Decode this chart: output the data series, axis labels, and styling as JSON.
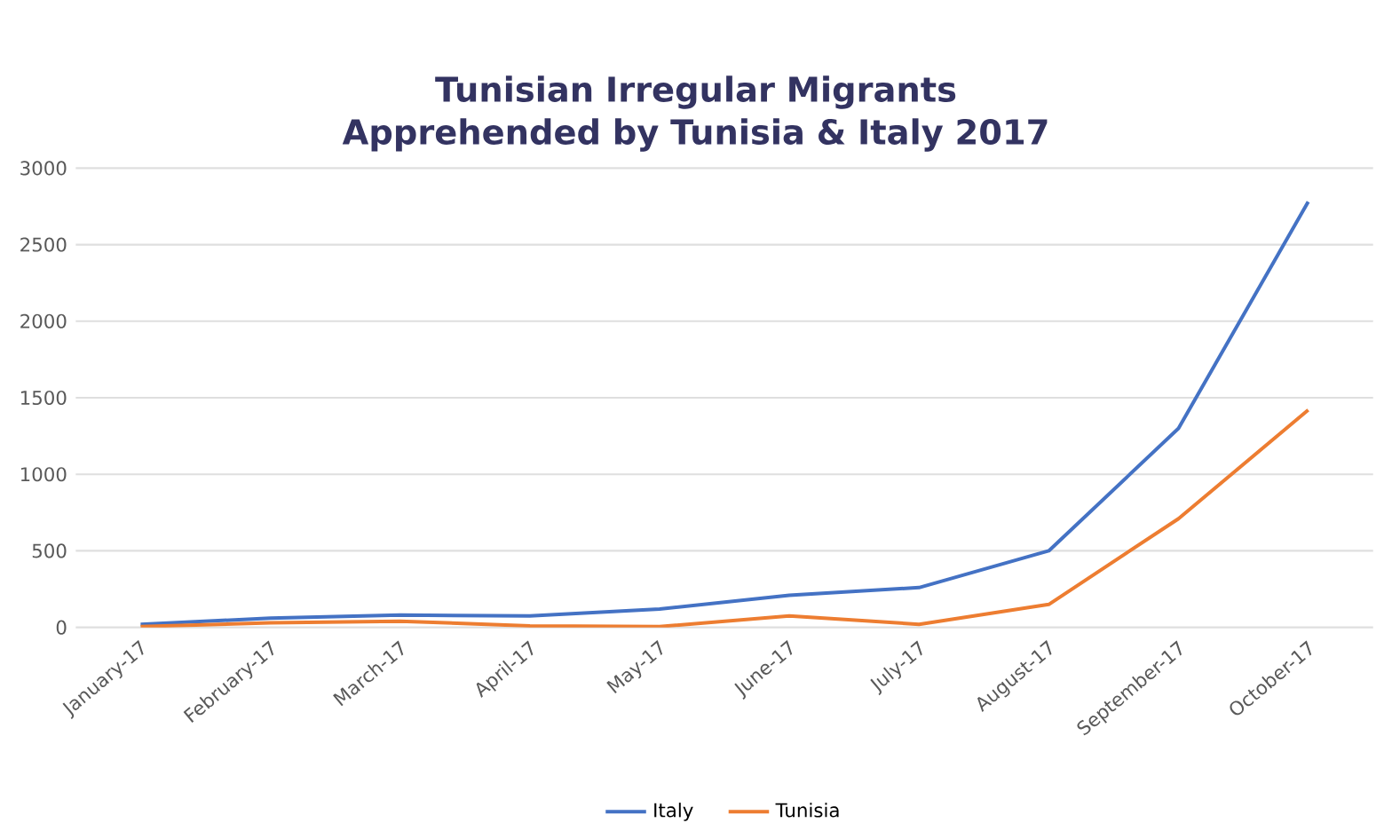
{
  "chart_data": {
    "type": "line",
    "title": "Tunisian Irregular Migrants Apprehended by Tunisia & Italy 2017",
    "categories": [
      "January-17",
      "February-17",
      "March-17",
      "April-17",
      "May-17",
      "June-17",
      "July-17",
      "August-17",
      "September-17",
      "October-17"
    ],
    "series": [
      {
        "name": "Italy",
        "color": "#4472c4",
        "values": [
          20,
          60,
          80,
          75,
          120,
          210,
          260,
          500,
          1300,
          2780
        ]
      },
      {
        "name": "Tunisia",
        "color": "#ed7d31",
        "values": [
          5,
          30,
          40,
          10,
          5,
          75,
          20,
          150,
          710,
          1420
        ]
      }
    ],
    "ylim": [
      0,
      3000
    ],
    "yticks": [
      0,
      500,
      1000,
      1500,
      2000,
      2500,
      3000
    ],
    "grid": "y",
    "legend": "bottom",
    "marker": "none",
    "line_style": "solid"
  }
}
